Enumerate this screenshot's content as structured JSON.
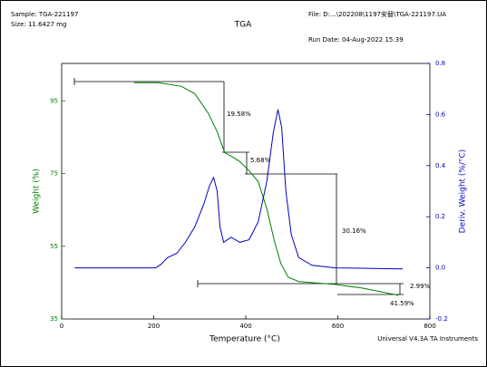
{
  "header": {
    "sample": "Sample: TGA-221197",
    "size": "Size:  11.6427 mg",
    "file": "File: D:...\\202208\\1197安替\\TGA-221197.UA",
    "run_date": "Run Date: 04-Aug-2022 15:39",
    "footer": "Universal V4.3A TA Instruments"
  },
  "chart_data": {
    "type": "line",
    "title": "TGA",
    "x_label": "Temperature (°C)",
    "y_label": "Weight (%)",
    "y2_label": "Deriv. Weight (%/°C)",
    "xlim": [
      0,
      800
    ],
    "xticks": [
      0,
      200,
      400,
      600,
      800
    ],
    "ylim": [
      35,
      105.3
    ],
    "yticks": [
      35,
      55,
      75,
      95
    ],
    "y2lim": [
      -0.2,
      0.8
    ],
    "y2ticks": [
      -0.2,
      {
        "value": 0,
        "label": "0.0"
      },
      0.2,
      0.4,
      0.6,
      0.8
    ],
    "series": [
      {
        "color": "#008000",
        "x": [
          157,
          210,
          260,
          289,
          319,
          338,
          354,
          368,
          387,
          407,
          427,
          446,
          462,
          476,
          492,
          515,
          594,
          653,
          732
        ],
        "values": [
          100,
          100,
          99,
          97,
          91.5,
          86.5,
          80.8,
          79.8,
          78.3,
          75.8,
          72.8,
          65.3,
          56.5,
          50.3,
          46.5,
          45.3,
          44.5,
          43.5,
          41.5
        ]
      },
      {
        "color": "#0000cc",
        "axis": "y2",
        "x": [
          28,
          161,
          204,
          216,
          230,
          250,
          269,
          289,
          309,
          321,
          330,
          338,
          344,
          352,
          368,
          387,
          407,
          427,
          446,
          460,
          470,
          478,
          487,
          499,
          515,
          544,
          594,
          741
        ],
        "values": [
          0,
          0,
          0,
          0.014,
          0.04,
          0.057,
          0.1,
          0.16,
          0.25,
          0.32,
          0.354,
          0.3,
          0.16,
          0.1,
          0.12,
          0.1,
          0.11,
          0.18,
          0.34,
          0.53,
          0.62,
          0.55,
          0.3,
          0.13,
          0.04,
          0.01,
          0,
          -0.004
        ]
      }
    ],
    "annotations": [
      "19.58%",
      "5.68%",
      "30.16%",
      "2.99%",
      "41.59%"
    ]
  }
}
